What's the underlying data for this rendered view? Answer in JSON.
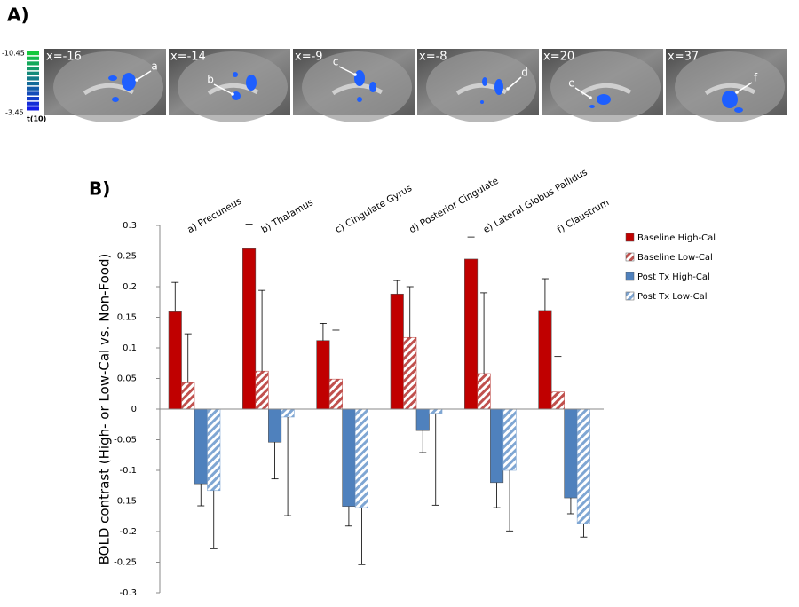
{
  "panel_a": {
    "label": "A)",
    "colorbar": {
      "max": -10.45,
      "min": -3.45,
      "stat_label": "t(10)"
    },
    "slices": [
      {
        "coord": "x=-16",
        "marker": "a"
      },
      {
        "coord": "x=-14",
        "marker": "b"
      },
      {
        "coord": "x=-9",
        "marker": "c"
      },
      {
        "coord": "x=-8",
        "marker": "d"
      },
      {
        "coord": "x=20",
        "marker": "e"
      },
      {
        "coord": "x=37",
        "marker": "f"
      }
    ]
  },
  "chart_data": {
    "type": "bar",
    "panel_label": "B)",
    "ylabel": "BOLD contrast (High- or Low-Cal vs. Non-Food)",
    "categories": [
      "a) Precuneus",
      "b) Thalamus",
      "c) Cingulate Gyrus",
      "d) Posterior Cingulate",
      "e) Lateral Globus Pallidus",
      "f) Claustrum"
    ],
    "series": [
      {
        "name": "Baseline High-Cal",
        "color": "#c00000",
        "hatch": false,
        "values": [
          0.159,
          0.262,
          0.112,
          0.188,
          0.245,
          0.161
        ],
        "errors": [
          0.048,
          0.04,
          0.028,
          0.022,
          0.036,
          0.052
        ]
      },
      {
        "name": "Baseline Low-Cal",
        "color": "#c0504d",
        "hatch": true,
        "values": [
          0.043,
          0.062,
          0.049,
          0.117,
          0.058,
          0.028
        ],
        "errors": [
          0.08,
          0.132,
          0.08,
          0.083,
          0.132,
          0.058
        ]
      },
      {
        "name": "Post Tx High-Cal",
        "color": "#4f81bd",
        "hatch": false,
        "values": [
          -0.122,
          -0.054,
          -0.159,
          -0.035,
          -0.12,
          -0.145
        ],
        "errors": [
          0.036,
          0.06,
          0.032,
          0.036,
          0.041,
          0.026
        ]
      },
      {
        "name": "Post Tx Low-Cal",
        "color": "#7fa6d3",
        "hatch": true,
        "values": [
          -0.133,
          -0.013,
          -0.161,
          -0.007,
          -0.1,
          -0.187
        ],
        "errors": [
          0.095,
          0.161,
          0.093,
          0.15,
          0.099,
          0.022
        ]
      }
    ],
    "ylim": [
      -0.3,
      0.3
    ],
    "yticks": [
      0.3,
      0.25,
      0.2,
      0.15,
      0.1,
      0.05,
      0,
      -0.05,
      -0.1,
      -0.15,
      -0.2,
      -0.25,
      -0.3
    ],
    "grid": false,
    "legend": "right"
  }
}
